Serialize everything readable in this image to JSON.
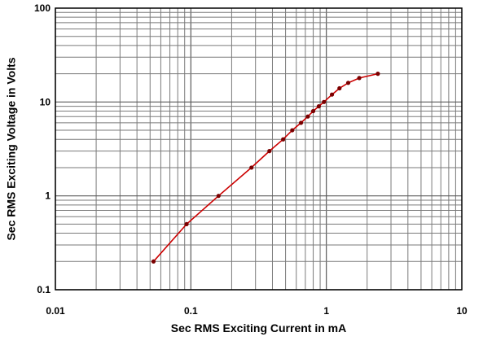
{
  "chart_data": {
    "type": "line",
    "xscale": "log",
    "yscale": "log",
    "xlim": [
      0.01,
      10
    ],
    "ylim": [
      0.1,
      100
    ],
    "xlabel": "Sec RMS Exciting Current in mA",
    "ylabel": "Sec RMS Exciting Voltage in Volts",
    "grid": true,
    "x_tick_labels": [
      "0.01",
      "0.1",
      "1",
      "10"
    ],
    "y_tick_labels": [
      "0.1",
      "1",
      "10",
      "100"
    ],
    "series": [
      {
        "color": "#cc0000",
        "marker_color": "#7a0000",
        "x": [
          0.053,
          0.093,
          0.16,
          0.28,
          0.38,
          0.48,
          0.56,
          0.65,
          0.73,
          0.8,
          0.88,
          0.96,
          1.1,
          1.25,
          1.45,
          1.75,
          2.4
        ],
        "y": [
          0.2,
          0.5,
          1.0,
          2.0,
          3.0,
          4.0,
          5.0,
          6.0,
          7.0,
          8.0,
          9.0,
          10.0,
          12.0,
          14.0,
          16.0,
          18.0,
          20.0
        ]
      }
    ]
  }
}
